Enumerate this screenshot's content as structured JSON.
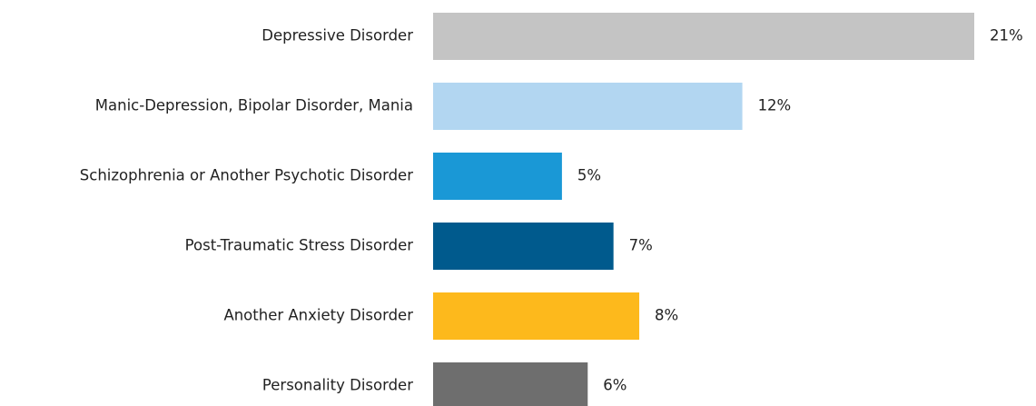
{
  "chart_data": {
    "type": "barh",
    "categories": [
      "Depressive Disorder",
      "Manic-Depression, Bipolar Disorder, Mania",
      "Schizophrenia or Another Psychotic Disorder",
      "Post-Traumatic Stress Disorder",
      "Another Anxiety Disorder",
      "Personality Disorder"
    ],
    "values": [
      21,
      12,
      5,
      7,
      8,
      6
    ],
    "value_labels": [
      "21%",
      "12%",
      "5%",
      "7%",
      "8%",
      "6%"
    ],
    "colors": [
      "#c4c4c4",
      "#b2d6f1",
      "#1a98d6",
      "#005a8d",
      "#fdb91c",
      "#6e6e6e"
    ]
  }
}
